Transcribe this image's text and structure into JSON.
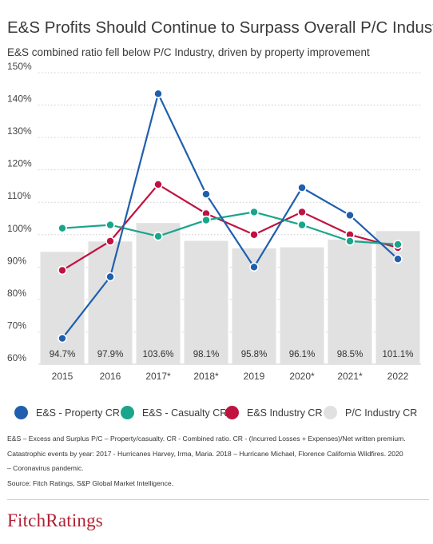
{
  "header": {
    "title": "E&S Profits Should Continue to Surpass Overall P/C Industry",
    "subtitle": "E&S combined ratio fell below P/C Industry, driven by property improvement"
  },
  "colors": {
    "property": "#1f5fad",
    "casualty": "#19a58c",
    "industry": "#c01240",
    "pc_bars": "#e1e1e1",
    "grid": "#cccccc",
    "brand": "#b11f33"
  },
  "chart_data": {
    "type": "bar",
    "categories": [
      "2015",
      "2016",
      "2017*",
      "2018*",
      "2019",
      "2020*",
      "2021*",
      "2022"
    ],
    "y_ticks": [
      "150%",
      "140%",
      "130%",
      "120%",
      "110%",
      "100%",
      "90%",
      "80%",
      "70%",
      "60%"
    ],
    "ylim": [
      60,
      150
    ],
    "grid": true,
    "legend_position": "bottom",
    "bars": {
      "name": "P/C Industry CR",
      "values": [
        94.7,
        97.9,
        103.6,
        98.1,
        95.8,
        96.1,
        98.5,
        101.1
      ],
      "labels": [
        "94.7%",
        "97.9%",
        "103.6%",
        "98.1%",
        "95.8%",
        "96.1%",
        "98.5%",
        "101.1%"
      ]
    },
    "series": [
      {
        "name": "E&S - Property CR",
        "type": "line",
        "color_key": "property",
        "values": [
          68,
          87,
          143.5,
          112.5,
          90,
          114.5,
          106,
          92.5
        ]
      },
      {
        "name": "E&S - Casualty CR",
        "type": "line",
        "color_key": "casualty",
        "values": [
          102,
          103,
          99.5,
          104.5,
          107,
          103,
          98,
          97
        ]
      },
      {
        "name": "E&S Industry CR",
        "type": "line",
        "color_key": "industry",
        "values": [
          89,
          98,
          115.5,
          106.5,
          100,
          107,
          100,
          96
        ]
      }
    ]
  },
  "legend": [
    {
      "label": "E&S - Property CR",
      "color_key": "property"
    },
    {
      "label": "E&S - Casualty CR",
      "color_key": "casualty"
    },
    {
      "label": "E&S Industry CR",
      "color_key": "industry"
    },
    {
      "label": "P/C Industry CR",
      "color_key": "pc_bars"
    }
  ],
  "notes": {
    "line1": "E&S – Excess and Surplus  P/C – Property/casualty. CR - Combined ratio. CR - (Incurred Losses + Expenses)/Net written premium.",
    "line2": "Catastrophic events by year: 2017 - Hurricanes Harvey, Irma, Maria. 2018 – Hurricane Michael, Florence California Wildfires. 2020",
    "line3": "– Coronavirus pandemic.",
    "line4": "Source: Fitch Ratings, S&P Global Market Intelligence."
  },
  "brand": {
    "logo_text": "FitchRatings"
  }
}
